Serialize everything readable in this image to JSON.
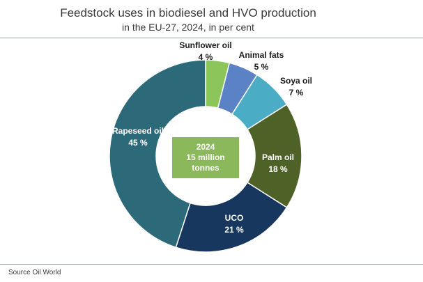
{
  "header": {
    "title": "Feedstock uses in biodiesel and HVO production",
    "subtitle": "in the EU-27, 2024, in per cent"
  },
  "source": "Source  Oil World",
  "chart_data": {
    "type": "pie",
    "variant": "donut",
    "center_label": [
      "2024",
      "15 million",
      "tonnes"
    ],
    "center_box_color": "#8cb85c",
    "series": [
      {
        "name": "Sunflower oil",
        "value": 4,
        "label": "4 %",
        "color": "#8cc65a"
      },
      {
        "name": "Animal fats",
        "value": 5,
        "label": "5 %",
        "color": "#5b82c4"
      },
      {
        "name": "Soya oil",
        "value": 7,
        "label": "7 %",
        "color": "#4bacc6"
      },
      {
        "name": "Palm oil",
        "value": 18,
        "label": "18 %",
        "color": "#4e6228"
      },
      {
        "name": "UCO",
        "value": 21,
        "label": "21 %",
        "color": "#17375e"
      },
      {
        "name": "Rapeseed oil",
        "value": 45,
        "label": "45 %",
        "color": "#2d6a79"
      }
    ]
  }
}
